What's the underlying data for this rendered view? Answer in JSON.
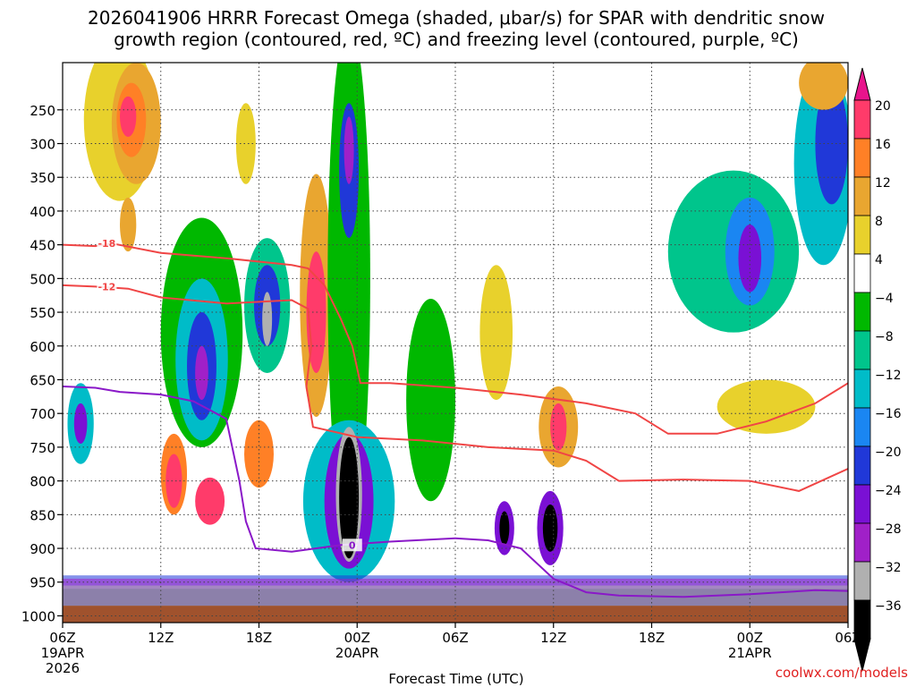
{
  "chart_data": {
    "type": "heatmap",
    "title": "2026041906 HRRR Forecast Omega (shaded, μbar/s) for SPAR with dendritic snow growth region (contoured, red, ºC) and freezing level (contoured, purple, ºC)",
    "title_lines": [
      "2026041906 HRRR Forecast Omega (shaded, μbar/s) for SPAR with dendritic snow",
      "growth region (contoured, red, ºC) and freezing level (contoured, purple, ºC)"
    ],
    "xlabel": "Forecast Time (UTC)",
    "ylabel": "",
    "xlim_hours": [
      0,
      48
    ],
    "ylim_hpa": [
      1010,
      180
    ],
    "x_ticks": [
      {
        "hour": 0,
        "label": "06Z",
        "sub1": "19APR",
        "sub2": "2026"
      },
      {
        "hour": 6,
        "label": "12Z",
        "sub1": "",
        "sub2": ""
      },
      {
        "hour": 12,
        "label": "18Z",
        "sub1": "",
        "sub2": ""
      },
      {
        "hour": 18,
        "label": "00Z",
        "sub1": "20APR",
        "sub2": ""
      },
      {
        "hour": 24,
        "label": "06Z",
        "sub1": "",
        "sub2": ""
      },
      {
        "hour": 30,
        "label": "12Z",
        "sub1": "",
        "sub2": ""
      },
      {
        "hour": 36,
        "label": "18Z",
        "sub1": "",
        "sub2": ""
      },
      {
        "hour": 42,
        "label": "00Z",
        "sub1": "21APR",
        "sub2": ""
      },
      {
        "hour": 48,
        "label": "06Z",
        "sub1": "",
        "sub2": ""
      }
    ],
    "y_ticks": [
      {
        "p": 250,
        "label": "250"
      },
      {
        "p": 300,
        "label": "300"
      },
      {
        "p": 350,
        "label": "350"
      },
      {
        "p": 400,
        "label": "400"
      },
      {
        "p": 450,
        "label": "450"
      },
      {
        "p": 500,
        "label": "500"
      },
      {
        "p": 550,
        "label": "550"
      },
      {
        "p": 600,
        "label": "600"
      },
      {
        "p": 650,
        "label": "650"
      },
      {
        "p": 700,
        "label": "700"
      },
      {
        "p": 750,
        "label": "750"
      },
      {
        "p": 800,
        "label": "800"
      },
      {
        "p": 850,
        "label": "850"
      },
      {
        "p": 900,
        "label": "900"
      },
      {
        "p": 950,
        "label": "950"
      },
      {
        "p": 1000,
        "label": "1000"
      }
    ],
    "colorbar": {
      "labels": [
        "20",
        "16",
        "12",
        "8",
        "4",
        "−4",
        "−8",
        "−12",
        "−16",
        "−20",
        "−24",
        "−28",
        "−32",
        "−36"
      ],
      "colors": [
        "#ff3b6a",
        "#ff8026",
        "#e9a630",
        "#e8d12c",
        "#ffffff",
        "#00b800",
        "#00c58c",
        "#00bcc8",
        "#1a86f2",
        "#2038d8",
        "#7a10d4",
        "#a020c8",
        "#b0b0b0",
        "#000000"
      ],
      "top_arrow_color": "#e8148c",
      "bottom_arrow_color": "#000000"
    },
    "omega_regions": [
      {
        "h": 3.5,
        "p": 265,
        "rh": 2.2,
        "rp": 120,
        "v": 6
      },
      {
        "h": 4.5,
        "p": 270,
        "rh": 1.5,
        "rp": 90,
        "v": 10
      },
      {
        "h": 4.2,
        "p": 265,
        "rh": 0.9,
        "rp": 55,
        "v": 14
      },
      {
        "h": 4.0,
        "p": 260,
        "rh": 0.5,
        "rp": 30,
        "v": 18
      },
      {
        "h": 4.0,
        "p": 420,
        "rh": 0.5,
        "rp": 40,
        "v": 10
      },
      {
        "h": 11.2,
        "p": 300,
        "rh": 0.6,
        "rp": 60,
        "v": 6
      },
      {
        "h": 1.1,
        "p": 715,
        "rh": 0.8,
        "rp": 60,
        "v": -12
      },
      {
        "h": 1.1,
        "p": 715,
        "rh": 0.4,
        "rp": 30,
        "v": -24
      },
      {
        "h": 8.5,
        "p": 580,
        "rh": 2.5,
        "rp": 170,
        "v": -6
      },
      {
        "h": 8.5,
        "p": 620,
        "rh": 1.6,
        "rp": 120,
        "v": -14
      },
      {
        "h": 8.5,
        "p": 630,
        "rh": 0.9,
        "rp": 80,
        "v": -22
      },
      {
        "h": 8.5,
        "p": 640,
        "rh": 0.4,
        "rp": 40,
        "v": -30
      },
      {
        "h": 12.5,
        "p": 540,
        "rh": 1.4,
        "rp": 100,
        "v": -10
      },
      {
        "h": 12.5,
        "p": 540,
        "rh": 0.8,
        "rp": 60,
        "v": -22
      },
      {
        "h": 12.5,
        "p": 560,
        "rh": 0.3,
        "rp": 40,
        "v": -34
      },
      {
        "h": 15.5,
        "p": 525,
        "rh": 1.0,
        "rp": 180,
        "v": 10
      },
      {
        "h": 15.5,
        "p": 550,
        "rh": 0.6,
        "rp": 90,
        "v": 18
      },
      {
        "h": 6.8,
        "p": 790,
        "rh": 0.8,
        "rp": 60,
        "v": 14
      },
      {
        "h": 6.8,
        "p": 800,
        "rh": 0.5,
        "rp": 40,
        "v": 20
      },
      {
        "h": 9.0,
        "p": 830,
        "rh": 0.9,
        "rp": 35,
        "v": 18
      },
      {
        "h": 12.0,
        "p": 760,
        "rh": 0.9,
        "rp": 50,
        "v": 14
      },
      {
        "h": 17.5,
        "p": 500,
        "rh": 1.3,
        "rp": 380,
        "v": -6
      },
      {
        "h": 17.5,
        "p": 340,
        "rh": 0.6,
        "rp": 100,
        "v": -20
      },
      {
        "h": 17.5,
        "p": 310,
        "rh": 0.3,
        "rp": 50,
        "v": -28
      },
      {
        "h": 17.5,
        "p": 830,
        "rh": 2.8,
        "rp": 120,
        "v": -12
      },
      {
        "h": 17.5,
        "p": 830,
        "rh": 1.5,
        "rp": 100,
        "v": -24
      },
      {
        "h": 17.5,
        "p": 820,
        "rh": 0.8,
        "rp": 100,
        "v": -32
      },
      {
        "h": 17.5,
        "p": 825,
        "rh": 0.6,
        "rp": 90,
        "v": -36
      },
      {
        "h": 22.5,
        "p": 680,
        "rh": 1.5,
        "rp": 150,
        "v": -6
      },
      {
        "h": 26.5,
        "p": 580,
        "rh": 1.0,
        "rp": 100,
        "v": 6
      },
      {
        "h": 30.3,
        "p": 720,
        "rh": 1.2,
        "rp": 60,
        "v": 8
      },
      {
        "h": 30.3,
        "p": 720,
        "rh": 0.5,
        "rp": 35,
        "v": 16
      },
      {
        "h": 29.8,
        "p": 870,
        "rh": 0.8,
        "rp": 55,
        "v": -24
      },
      {
        "h": 29.8,
        "p": 870,
        "rh": 0.45,
        "rp": 35,
        "v": -36
      },
      {
        "h": 27.0,
        "p": 870,
        "rh": 0.6,
        "rp": 40,
        "v": -24
      },
      {
        "h": 27.0,
        "p": 870,
        "rh": 0.3,
        "rp": 25,
        "v": -36
      },
      {
        "h": 41.0,
        "p": 460,
        "rh": 4.0,
        "rp": 120,
        "v": -10
      },
      {
        "h": 42.0,
        "p": 460,
        "rh": 1.5,
        "rp": 80,
        "v": -18
      },
      {
        "h": 42.0,
        "p": 470,
        "rh": 0.7,
        "rp": 50,
        "v": -26
      },
      {
        "h": 46.5,
        "p": 330,
        "rh": 1.8,
        "rp": 150,
        "v": -14
      },
      {
        "h": 47.0,
        "p": 300,
        "rh": 1.0,
        "rp": 90,
        "v": -20
      },
      {
        "h": 46.5,
        "p": 210,
        "rh": 1.5,
        "rp": 40,
        "v": 8
      },
      {
        "h": 43.0,
        "p": 690,
        "rh": 3.0,
        "rp": 40,
        "v": 6
      }
    ],
    "surface_pressure_hpa": 985,
    "low_level_band": [
      {
        "p_top": 960,
        "v": -6
      },
      {
        "p_top": 940,
        "v": -20
      },
      {
        "p_top": 945,
        "v": -28
      },
      {
        "p_top": 955,
        "v": -32
      }
    ],
    "contours": [
      {
        "name": "-18",
        "kind": "dendritic",
        "color": "#f04545",
        "label_at_hour": 2.7,
        "points": [
          [
            0,
            450
          ],
          [
            2,
            452
          ],
          [
            3,
            448
          ],
          [
            6,
            462
          ],
          [
            10,
            470
          ],
          [
            14,
            480
          ],
          [
            15,
            485
          ],
          [
            16,
            510
          ],
          [
            17,
            560
          ],
          [
            17.7,
            600
          ],
          [
            18.2,
            655
          ],
          [
            20,
            655
          ],
          [
            24,
            662
          ],
          [
            28,
            672
          ],
          [
            32,
            685
          ],
          [
            35,
            700
          ],
          [
            37,
            730
          ],
          [
            40,
            730
          ],
          [
            43,
            712
          ],
          [
            46,
            685
          ],
          [
            48,
            655
          ]
        ]
      },
      {
        "name": "-12",
        "kind": "dendritic",
        "color": "#f04545",
        "label_at_hour": 2.7,
        "points": [
          [
            0,
            510
          ],
          [
            2,
            512
          ],
          [
            4,
            515
          ],
          [
            6,
            528
          ],
          [
            10,
            537
          ],
          [
            14,
            532
          ],
          [
            15,
            545
          ],
          [
            15.2,
            600
          ],
          [
            14.9,
            660
          ],
          [
            15.3,
            720
          ],
          [
            18,
            735
          ],
          [
            22,
            740
          ],
          [
            26,
            750
          ],
          [
            30,
            755
          ],
          [
            32,
            770
          ],
          [
            34,
            800
          ],
          [
            38,
            798
          ],
          [
            42,
            800
          ],
          [
            45,
            815
          ],
          [
            48,
            782
          ]
        ]
      },
      {
        "name": "0",
        "kind": "freezing",
        "color": "#8a18c8",
        "label_at_hour": 17.7,
        "points": [
          [
            0,
            660
          ],
          [
            2,
            662
          ],
          [
            3.5,
            668
          ],
          [
            6,
            672
          ],
          [
            8,
            682
          ],
          [
            10,
            708
          ],
          [
            10.8,
            800
          ],
          [
            11.2,
            860
          ],
          [
            11.8,
            900
          ],
          [
            14,
            905
          ],
          [
            17,
            895
          ],
          [
            20,
            890
          ],
          [
            24,
            885
          ],
          [
            26,
            888
          ],
          [
            28,
            900
          ],
          [
            30,
            945
          ],
          [
            32,
            965
          ],
          [
            34,
            970
          ],
          [
            38,
            972
          ],
          [
            42,
            968
          ],
          [
            46,
            962
          ],
          [
            48,
            963
          ]
        ]
      }
    ],
    "credit": "coolwx.com/models"
  }
}
